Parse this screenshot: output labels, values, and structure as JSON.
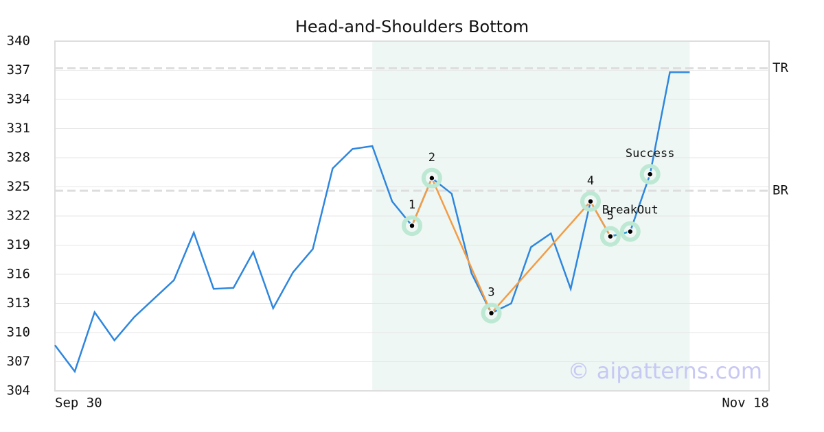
{
  "chart_data": {
    "type": "line",
    "title": "Head-and-Shoulders Bottom",
    "x": [
      0,
      1,
      2,
      3,
      4,
      5,
      6,
      7,
      8,
      9,
      10,
      11,
      12,
      13,
      14,
      15,
      16,
      17,
      18,
      19,
      20,
      21,
      22,
      23,
      24,
      25,
      26,
      27,
      28,
      29,
      30,
      31,
      32
    ],
    "values": [
      308.7,
      306.0,
      312.1,
      309.2,
      311.6,
      313.5,
      315.4,
      320.3,
      314.5,
      314.6,
      318.3,
      312.5,
      316.2,
      318.6,
      326.9,
      328.9,
      329.2,
      323.5,
      321.0,
      325.9,
      324.3,
      316.1,
      312.0,
      313.0,
      318.8,
      320.2,
      314.5,
      323.5,
      319.9,
      320.4,
      326.3,
      336.8,
      336.8
    ],
    "color": "#2e86de",
    "xlim": [
      0,
      36
    ],
    "xticks": [
      {
        "value": 0,
        "label": "Sep 30"
      },
      {
        "value": 36,
        "label": "Nov 18"
      }
    ],
    "ylim": [
      304,
      340
    ],
    "yticks": [
      304,
      307,
      310,
      313,
      316,
      319,
      322,
      325,
      328,
      331,
      334,
      337,
      340
    ],
    "grid": true,
    "shaded_x": [
      16,
      32
    ],
    "reference_lines": [
      {
        "value": 337.2,
        "label": "TR"
      },
      {
        "value": 324.6,
        "label": "BR"
      }
    ],
    "pattern": {
      "color": "#f39c45",
      "points": [
        {
          "x": 18,
          "y": 321.0,
          "label": "1"
        },
        {
          "x": 19,
          "y": 325.9,
          "label": "2"
        },
        {
          "x": 22,
          "y": 312.0,
          "label": "3"
        },
        {
          "x": 27,
          "y": 323.5,
          "label": "4"
        },
        {
          "x": 28,
          "y": 319.9,
          "label": "5"
        }
      ]
    },
    "signals": [
      {
        "x": 29,
        "y": 320.4,
        "label": "BreakOut"
      },
      {
        "x": 30,
        "y": 326.3,
        "label": "Success"
      }
    ],
    "watermark": "© aipatterns.com"
  }
}
